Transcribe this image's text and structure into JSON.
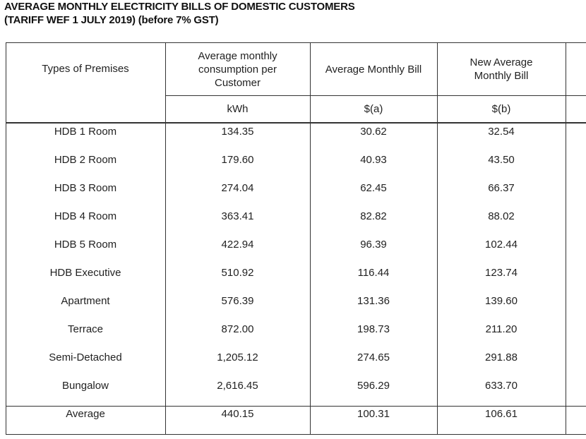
{
  "header": {
    "title_lines": [
      "AVERAGE MONTHLY ELECTRICITY BILLS OF DOMESTIC CUSTOMERS",
      "(TARIFF WEF 1 JULY 2019) (before 7% GST)"
    ]
  },
  "table": {
    "columns": [
      "Types of Premises",
      "Average monthly consumption per Customer",
      "Average Monthly Bill",
      "New Average Monthly Bill"
    ],
    "units": [
      "kWh",
      "$(a)",
      "$(b)"
    ],
    "rows": [
      [
        "HDB 1 Room",
        "134.35",
        "30.62",
        "32.54"
      ],
      [
        "HDB 2 Room",
        "179.60",
        "40.93",
        "43.50"
      ],
      [
        "HDB 3 Room",
        "274.04",
        "62.45",
        "66.37"
      ],
      [
        "HDB 4 Room",
        "363.41",
        "82.82",
        "88.02"
      ],
      [
        "HDB 5 Room",
        "422.94",
        "96.39",
        "102.44"
      ],
      [
        "HDB Executive",
        "510.92",
        "116.44",
        "123.74"
      ],
      [
        "Apartment",
        "576.39",
        "131.36",
        "139.60"
      ],
      [
        "Terrace",
        "872.00",
        "198.73",
        "211.20"
      ],
      [
        "Semi-Detached",
        "1,205.12",
        "274.65",
        "291.88"
      ],
      [
        "Bungalow",
        "2,616.45",
        "596.29",
        "633.70"
      ]
    ],
    "average": [
      "Average",
      "440.15",
      "100.31",
      "106.61"
    ]
  }
}
